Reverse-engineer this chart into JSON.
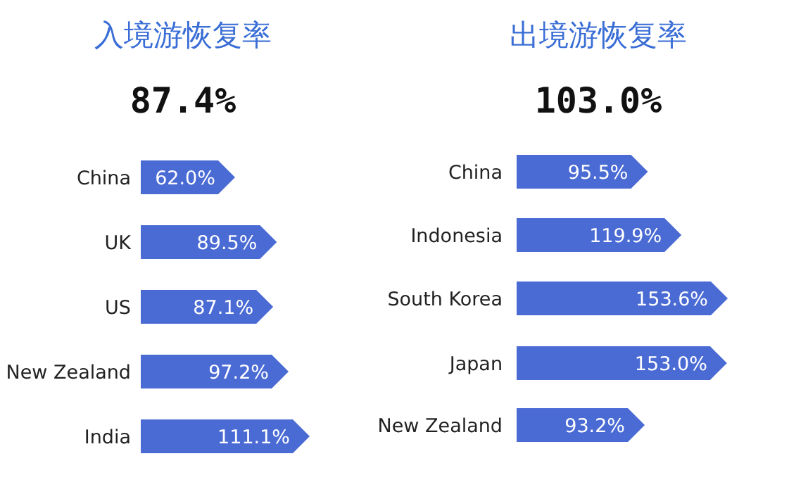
{
  "chart_data": [
    {
      "type": "bar",
      "orientation": "horizontal",
      "title": "入境游恢复率",
      "subtitle": "87.4%",
      "categories": [
        "China",
        "UK",
        "US",
        "New Zealand",
        "India"
      ],
      "values": [
        62.0,
        89.5,
        87.1,
        97.2,
        111.1
      ],
      "value_labels": [
        "62.0%",
        "89.5%",
        "87.1%",
        "97.2%",
        "111.1%"
      ],
      "color": "#4a6ad4"
    },
    {
      "type": "bar",
      "orientation": "horizontal",
      "title": "出境游恢复率",
      "subtitle": "103.0%",
      "categories": [
        "China",
        "Indonesia",
        "South Korea",
        "Japan",
        "New Zealand"
      ],
      "values": [
        95.5,
        119.9,
        153.6,
        153.0,
        93.2
      ],
      "value_labels": [
        "95.5%",
        "119.9%",
        "153.6%",
        "153.0%",
        "93.2%"
      ],
      "color": "#4a6ad4"
    }
  ]
}
